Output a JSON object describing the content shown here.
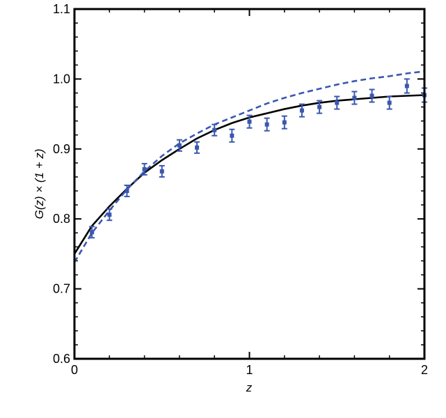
{
  "chart_data": {
    "type": "line",
    "title": "",
    "xlabel": "z",
    "ylabel": "G(z) × (1 + z)",
    "xlim": [
      0,
      2
    ],
    "ylim": [
      0.6,
      1.1
    ],
    "x_ticks": [
      0,
      1,
      2
    ],
    "x_tick_labels": [
      "0",
      "1",
      "2"
    ],
    "y_ticks": [
      0.6,
      0.7,
      0.8,
      0.9,
      1.0,
      1.1
    ],
    "y_tick_labels": [
      "0.6",
      "0.7",
      "0.8",
      "0.9",
      "1.0",
      "1.1"
    ],
    "grid": false,
    "legend": false,
    "colors": {
      "solid": "#000000",
      "dashed": "#3a57b0",
      "points": "#3a57b0"
    },
    "series": [
      {
        "style": "solid",
        "x": [
          0,
          0.1,
          0.2,
          0.3,
          0.4,
          0.5,
          0.6,
          0.7,
          0.8,
          0.9,
          1.0,
          1.1,
          1.2,
          1.3,
          1.4,
          1.5,
          1.6,
          1.7,
          1.8,
          1.9,
          2.0
        ],
        "y": [
          0.75,
          0.79,
          0.818,
          0.843,
          0.866,
          0.884,
          0.9,
          0.915,
          0.927,
          0.937,
          0.945,
          0.951,
          0.957,
          0.962,
          0.966,
          0.969,
          0.971,
          0.973,
          0.975,
          0.976,
          0.977
        ]
      },
      {
        "style": "dashed",
        "x": [
          0,
          0.1,
          0.2,
          0.3,
          0.4,
          0.5,
          0.6,
          0.7,
          0.8,
          0.9,
          1.0,
          1.1,
          1.2,
          1.3,
          1.4,
          1.5,
          1.6,
          1.7,
          1.8,
          1.9,
          2.0
        ],
        "y": [
          0.738,
          0.78,
          0.812,
          0.842,
          0.868,
          0.89,
          0.908,
          0.922,
          0.935,
          0.945,
          0.955,
          0.965,
          0.973,
          0.98,
          0.986,
          0.992,
          0.997,
          1.001,
          1.004,
          1.008,
          1.011
        ]
      },
      {
        "style": "points",
        "x": [
          0.1,
          0.2,
          0.3,
          0.4,
          0.5,
          0.6,
          0.7,
          0.8,
          0.9,
          1.0,
          1.1,
          1.2,
          1.3,
          1.4,
          1.5,
          1.6,
          1.7,
          1.8,
          1.9,
          2.0
        ],
        "y": [
          0.781,
          0.806,
          0.84,
          0.871,
          0.868,
          0.905,
          0.902,
          0.927,
          0.919,
          0.939,
          0.935,
          0.938,
          0.955,
          0.96,
          0.966,
          0.973,
          0.976,
          0.966,
          0.99,
          0.977
        ],
        "err": [
          0.008,
          0.008,
          0.008,
          0.008,
          0.008,
          0.008,
          0.008,
          0.008,
          0.009,
          0.009,
          0.009,
          0.009,
          0.009,
          0.009,
          0.009,
          0.009,
          0.009,
          0.009,
          0.01,
          0.01
        ]
      }
    ]
  }
}
